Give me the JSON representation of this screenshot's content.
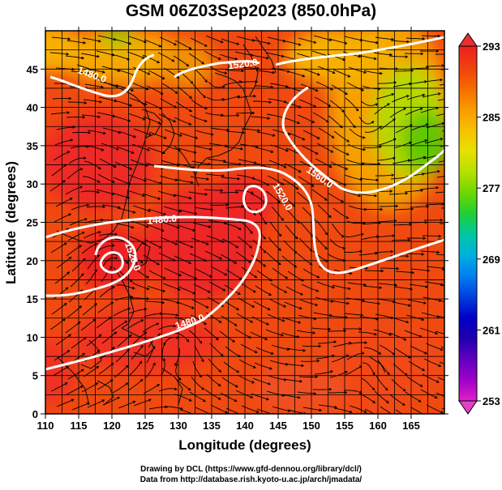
{
  "title": "GSM 06Z03Sep2023 (850.0hPa)",
  "xlabel": "Longitude (degrees)",
  "ylabel": "Latitude  (degrees)",
  "x_ticks": [
    "110",
    "115",
    "120",
    "125",
    "130",
    "135",
    "140",
    "145",
    "150",
    "155",
    "160",
    "165"
  ],
  "y_ticks": [
    "0",
    "5",
    "10",
    "15",
    "20",
    "25",
    "30",
    "35",
    "40",
    "45"
  ],
  "colorbar": {
    "ticks": [
      "293",
      "285",
      "277",
      "269",
      "261",
      "253"
    ],
    "colors": [
      "#ee2020",
      "#f04010",
      "#f56a00",
      "#fb9800",
      "#f8c000",
      "#e8e000",
      "#b8e000",
      "#70d800",
      "#20d030",
      "#00c8a0",
      "#00b0e0",
      "#0080f0",
      "#0040e0",
      "#0000c8",
      "#2000b0",
      "#6000c0",
      "#a000c8",
      "#e020c8"
    ]
  },
  "contours": [
    {
      "label": "1520.0"
    },
    {
      "label": "1560.0"
    },
    {
      "label": "1480.0"
    }
  ],
  "contour_label_texts": [
    "1520.0",
    "1480.0",
    "1560.0",
    "1520.0",
    "1480.0",
    "1520.0",
    "1480.0"
  ],
  "credits": {
    "line1": "Drawing by DCL (https://www.gfd-dennou.org/library/dcl/)",
    "line2": "Data from http://database.rish.kyoto-u.ac.jp/arch/jmadata/"
  }
}
